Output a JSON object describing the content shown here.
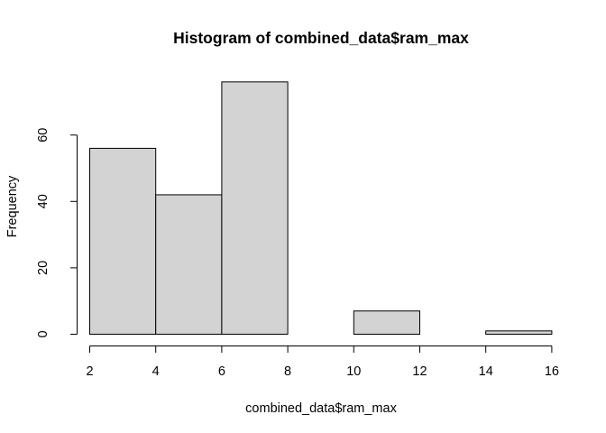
{
  "chart_data": {
    "type": "histogram",
    "title": "Histogram of combined_data$ram_max",
    "xlabel": "combined_data$ram_max",
    "ylabel": "Frequency",
    "bins": [
      {
        "start": 2,
        "end": 4,
        "count": 56
      },
      {
        "start": 4,
        "end": 6,
        "count": 42
      },
      {
        "start": 6,
        "end": 8,
        "count": 76
      },
      {
        "start": 8,
        "end": 10,
        "count": 0
      },
      {
        "start": 10,
        "end": 12,
        "count": 7
      },
      {
        "start": 12,
        "end": 14,
        "count": 0
      },
      {
        "start": 14,
        "end": 16,
        "count": 1
      }
    ],
    "xlim": [
      2,
      16
    ],
    "ylim": [
      0,
      76
    ],
    "x_ticks": [
      "2",
      "4",
      "6",
      "8",
      "10",
      "12",
      "14",
      "16"
    ],
    "y_ticks": [
      "0",
      "20",
      "40",
      "60"
    ],
    "bar_fill": "#d3d3d3",
    "bar_stroke": "#000000",
    "grid": false
  }
}
